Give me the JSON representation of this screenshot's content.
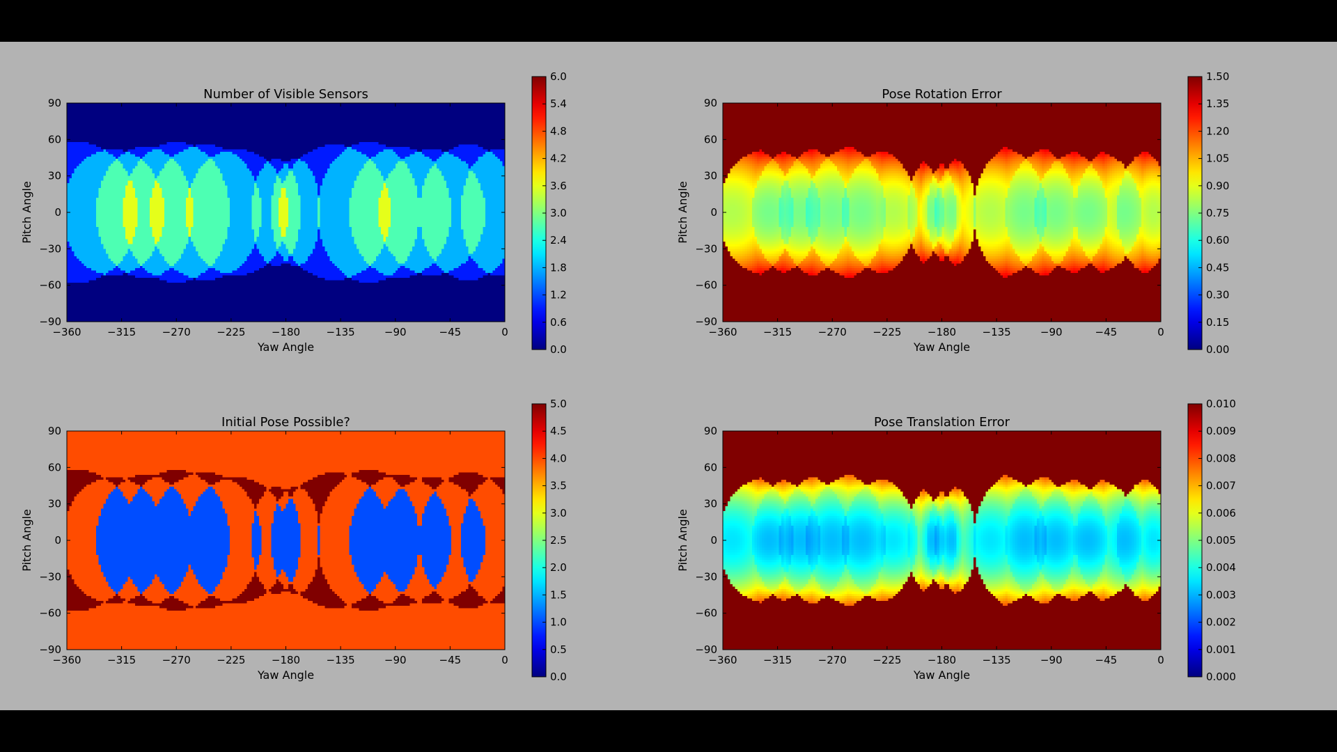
{
  "chart_data": [
    {
      "type": "heatmap",
      "title": "Number of Visible Sensors",
      "xlabel": "Yaw Angle",
      "ylabel": "Pitch Angle",
      "xlim": [
        -360,
        0
      ],
      "ylim": [
        -90,
        90
      ],
      "xticks": [
        "−360",
        "−315",
        "−270",
        "−225",
        "−180",
        "−135",
        "−90",
        "−45",
        "0"
      ],
      "yticks": [
        "90",
        "60",
        "30",
        "0",
        "−30",
        "−60",
        "−90"
      ],
      "colorbar": {
        "min": 0.0,
        "max": 6.0,
        "ticks": [
          "6.0",
          "5.4",
          "4.8",
          "4.2",
          "3.6",
          "3.0",
          "2.4",
          "1.8",
          "1.2",
          "0.6",
          "0.0"
        ]
      },
      "colormap": "jet",
      "mode": "count",
      "background_value": 0.0
    },
    {
      "type": "heatmap",
      "title": "Pose Rotation Error",
      "xlabel": "Yaw Angle",
      "ylabel": "Pitch Angle",
      "xlim": [
        -360,
        0
      ],
      "ylim": [
        -90,
        90
      ],
      "xticks": [
        "−360",
        "−315",
        "−270",
        "−225",
        "−180",
        "−135",
        "−90",
        "−45",
        "0"
      ],
      "yticks": [
        "90",
        "60",
        "30",
        "0",
        "−30",
        "−60",
        "−90"
      ],
      "colorbar": {
        "min": 0.0,
        "max": 1.5,
        "ticks": [
          "1.50",
          "1.35",
          "1.20",
          "1.05",
          "0.90",
          "0.75",
          "0.60",
          "0.45",
          "0.30",
          "0.15",
          "0.00"
        ]
      },
      "colormap": "jet",
      "mode": "error-rotation",
      "background_value": 1.5
    },
    {
      "type": "heatmap",
      "title": "Initial Pose Possible?",
      "xlabel": "Yaw Angle",
      "ylabel": "Pitch Angle",
      "xlim": [
        -360,
        0
      ],
      "ylim": [
        -90,
        90
      ],
      "xticks": [
        "−360",
        "−315",
        "−270",
        "−225",
        "−180",
        "−135",
        "−90",
        "−45",
        "0"
      ],
      "yticks": [
        "90",
        "60",
        "30",
        "0",
        "−30",
        "−60",
        "−90"
      ],
      "colorbar": {
        "min": 0.0,
        "max": 5.0,
        "ticks": [
          "5.0",
          "4.5",
          "4.0",
          "3.5",
          "3.0",
          "2.5",
          "2.0",
          "1.5",
          "1.0",
          "0.5",
          "0.0"
        ]
      },
      "colormap": "jet",
      "mode": "possible",
      "background_value": 4.0
    },
    {
      "type": "heatmap",
      "title": "Pose Translation Error",
      "xlabel": "Yaw Angle",
      "ylabel": "Pitch Angle",
      "xlim": [
        -360,
        0
      ],
      "ylim": [
        -90,
        90
      ],
      "xticks": [
        "−360",
        "−315",
        "−270",
        "−225",
        "−180",
        "−135",
        "−90",
        "−45",
        "0"
      ],
      "yticks": [
        "90",
        "60",
        "30",
        "0",
        "−30",
        "−60",
        "−90"
      ],
      "colorbar": {
        "min": 0.0,
        "max": 0.01,
        "ticks": [
          "0.010",
          "0.009",
          "0.008",
          "0.007",
          "0.006",
          "0.005",
          "0.004",
          "0.003",
          "0.002",
          "0.001",
          "0.000"
        ]
      },
      "colormap": "jet",
      "mode": "error-translation",
      "background_value": 0.01
    }
  ]
}
